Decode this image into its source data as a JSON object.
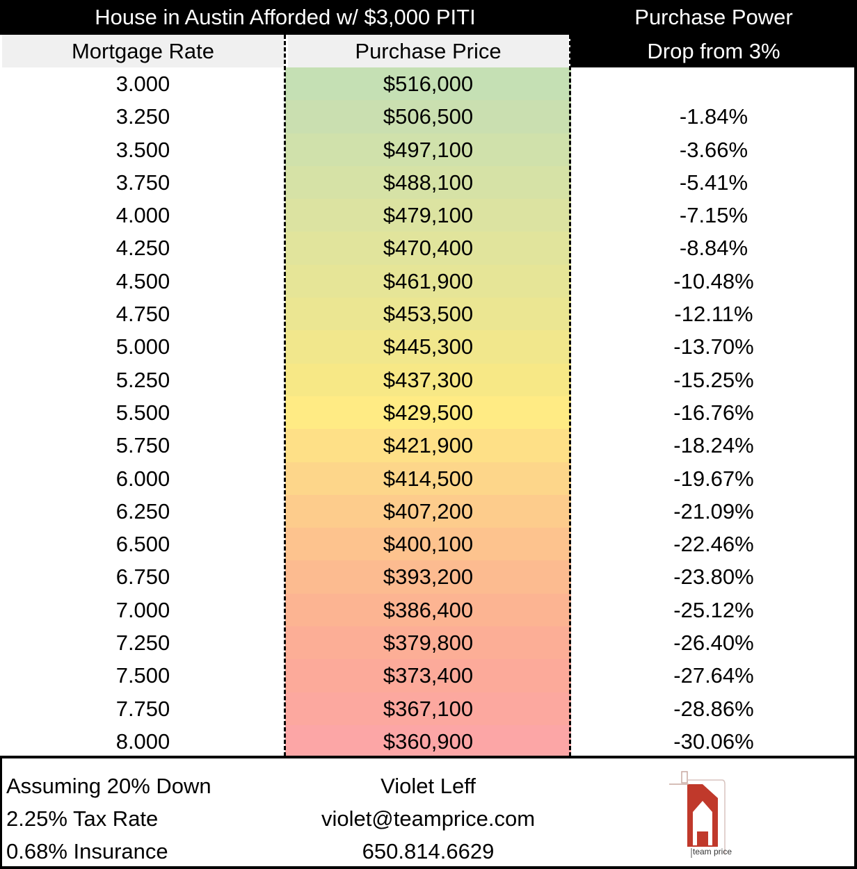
{
  "title": "House in Austin Afforded w/ $3,000 PITI",
  "columns": {
    "rate": "Mortgage Rate",
    "price": "Purchase Price",
    "drop_line1": "Purchase Power",
    "drop_line2": "Drop from 3%"
  },
  "rows": [
    {
      "rate": "3.000",
      "price": "$516,000",
      "drop": "",
      "color": "#c5e0b4"
    },
    {
      "rate": "3.250",
      "price": "$506,500",
      "drop": "-1.84%",
      "color": "#cadfb0"
    },
    {
      "rate": "3.500",
      "price": "$497,100",
      "drop": "-3.66%",
      "color": "#d0e1ab"
    },
    {
      "rate": "3.750",
      "price": "$488,100",
      "drop": "-5.41%",
      "color": "#d6e2a6"
    },
    {
      "rate": "4.000",
      "price": "$479,100",
      "drop": "-7.15%",
      "color": "#dce3a1"
    },
    {
      "rate": "4.250",
      "price": "$470,400",
      "drop": "-8.84%",
      "color": "#e1e49c"
    },
    {
      "rate": "4.500",
      "price": "$461,900",
      "drop": "-10.48%",
      "color": "#e6e597"
    },
    {
      "rate": "4.750",
      "price": "$453,500",
      "drop": "-12.11%",
      "color": "#ebe692"
    },
    {
      "rate": "5.000",
      "price": "$445,300",
      "drop": "-13.70%",
      "color": "#f1e78c"
    },
    {
      "rate": "5.250",
      "price": "$437,300",
      "drop": "-15.25%",
      "color": "#f7e886"
    },
    {
      "rate": "5.500",
      "price": "$429,500",
      "drop": "-16.76%",
      "color": "#ffeb84"
    },
    {
      "rate": "5.750",
      "price": "$421,900",
      "drop": "-18.24%",
      "color": "#fee087"
    },
    {
      "rate": "6.000",
      "price": "$414,500",
      "drop": "-19.67%",
      "color": "#fdd68a"
    },
    {
      "rate": "6.250",
      "price": "$407,200",
      "drop": "-21.09%",
      "color": "#fdcc8c"
    },
    {
      "rate": "6.500",
      "price": "$400,100",
      "drop": "-22.46%",
      "color": "#fdc38e"
    },
    {
      "rate": "6.750",
      "price": "$393,200",
      "drop": "-23.80%",
      "color": "#fcbb90"
    },
    {
      "rate": "7.000",
      "price": "$386,400",
      "drop": "-25.12%",
      "color": "#fcb492"
    },
    {
      "rate": "7.250",
      "price": "$379,800",
      "drop": "-26.40%",
      "color": "#fcae96"
    },
    {
      "rate": "7.500",
      "price": "$373,400",
      "drop": "-27.64%",
      "color": "#fcaa9a"
    },
    {
      "rate": "7.750",
      "price": "$367,100",
      "drop": "-28.86%",
      "color": "#fca89f"
    },
    {
      "rate": "8.000",
      "price": "$360,900",
      "drop": "-30.06%",
      "color": "#fca6a6"
    }
  ],
  "footer": {
    "assumptions": [
      "Assuming 20% Down",
      "2.25% Tax Rate",
      "0.68% Insurance"
    ],
    "contact": [
      "Violet Leff",
      "violet@teamprice.com",
      "650.814.6629"
    ],
    "logo_text": "team price",
    "logo_color": "#c0392b"
  }
}
